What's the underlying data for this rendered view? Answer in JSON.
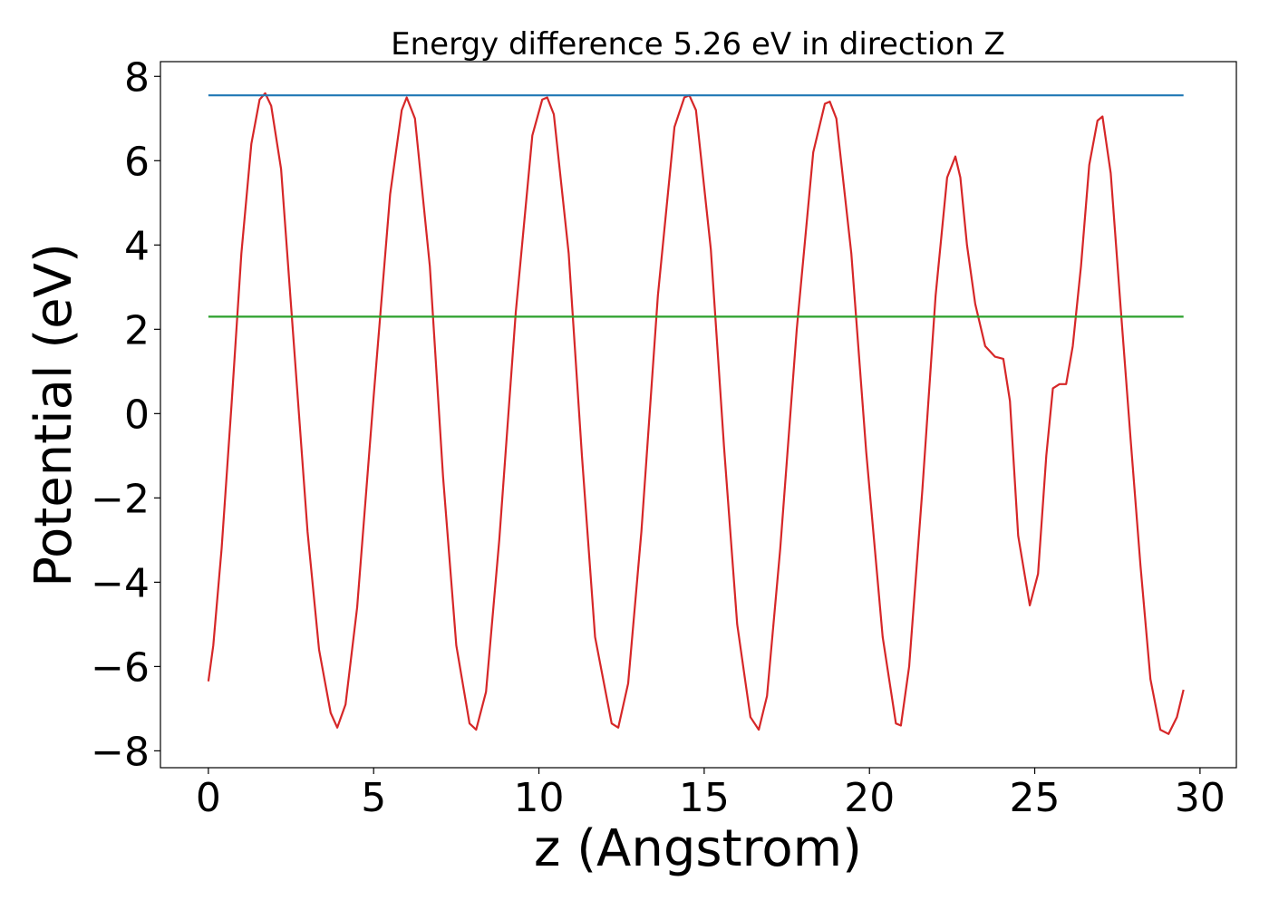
{
  "chart_data": {
    "type": "line",
    "title": "Energy difference 5.26 eV in direction Z",
    "xlabel": "z (Angstrom)",
    "ylabel": "Potential (eV)",
    "xlim": [
      -1.45,
      31.1
    ],
    "ylim": [
      -8.4,
      8.35
    ],
    "xticks": [
      0,
      5,
      10,
      15,
      20,
      25,
      30
    ],
    "yticks": [
      -8,
      -6,
      -4,
      -2,
      0,
      2,
      4,
      6,
      8
    ],
    "xtick_labels": [
      "0",
      "5",
      "10",
      "15",
      "20",
      "25",
      "30"
    ],
    "ytick_labels": [
      "−8",
      "−6",
      "−4",
      "−2",
      "0",
      "2",
      "4",
      "6",
      "8"
    ],
    "grid": false,
    "series": [
      {
        "color": "#d62728",
        "x": [
          0.0,
          0.15,
          0.4,
          0.7,
          1.0,
          1.3,
          1.55,
          1.72,
          1.9,
          2.2,
          2.6,
          3.0,
          3.35,
          3.7,
          3.9,
          4.15,
          4.5,
          5.0,
          5.5,
          5.85,
          6.0,
          6.25,
          6.7,
          7.1,
          7.5,
          7.9,
          8.1,
          8.4,
          8.8,
          9.3,
          9.8,
          10.1,
          10.25,
          10.45,
          10.9,
          11.3,
          11.7,
          12.2,
          12.4,
          12.7,
          13.1,
          13.6,
          14.1,
          14.4,
          14.55,
          14.75,
          15.2,
          15.6,
          16.0,
          16.4,
          16.65,
          16.9,
          17.3,
          17.8,
          18.3,
          18.65,
          18.8,
          19.0,
          19.45,
          19.9,
          20.4,
          20.8,
          20.95,
          21.2,
          21.6,
          22.0,
          22.35,
          22.6,
          22.75,
          22.95,
          23.2,
          23.5,
          23.8,
          24.05,
          24.25,
          24.5,
          24.85,
          25.1,
          25.35,
          25.55,
          25.75,
          25.95,
          26.15,
          26.4,
          26.65,
          26.9,
          27.05,
          27.3,
          27.6,
          27.9,
          28.2,
          28.5,
          28.8,
          29.05,
          29.3,
          29.5
        ],
        "values": [
          -6.35,
          -5.5,
          -3.2,
          0.2,
          3.8,
          6.4,
          7.45,
          7.6,
          7.3,
          5.8,
          1.5,
          -2.8,
          -5.6,
          -7.1,
          -7.45,
          -6.9,
          -4.6,
          0.4,
          5.2,
          7.2,
          7.5,
          7.0,
          3.5,
          -1.5,
          -5.5,
          -7.35,
          -7.5,
          -6.6,
          -3.0,
          2.4,
          6.6,
          7.45,
          7.5,
          7.1,
          3.8,
          -1.0,
          -5.3,
          -7.35,
          -7.45,
          -6.4,
          -2.8,
          2.8,
          6.8,
          7.5,
          7.55,
          7.2,
          3.9,
          -0.8,
          -5.0,
          -7.2,
          -7.5,
          -6.7,
          -3.2,
          2.0,
          6.2,
          7.35,
          7.4,
          7.0,
          3.8,
          -0.9,
          -5.3,
          -7.35,
          -7.4,
          -6.0,
          -1.8,
          2.8,
          5.6,
          6.1,
          5.6,
          4.0,
          2.6,
          1.6,
          1.35,
          1.3,
          0.3,
          -2.9,
          -4.55,
          -3.8,
          -1.0,
          0.6,
          0.7,
          0.7,
          1.6,
          3.5,
          5.9,
          6.95,
          7.05,
          5.7,
          2.5,
          -0.6,
          -3.6,
          -6.3,
          -7.5,
          -7.6,
          -7.2,
          -6.55
        ]
      },
      {
        "color": "#1f77b4",
        "x": [
          0.0,
          29.5
        ],
        "values": [
          7.55,
          7.55
        ]
      },
      {
        "color": "#2ca02c",
        "x": [
          0.0,
          29.5
        ],
        "values": [
          2.3,
          2.3
        ]
      }
    ]
  }
}
